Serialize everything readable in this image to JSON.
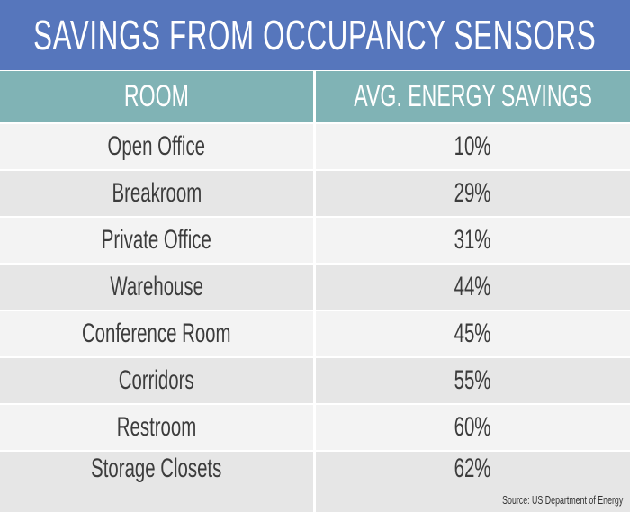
{
  "chart_data": {
    "type": "table",
    "title": "SAVINGS FROM OCCUPANCY SENSORS",
    "columns": [
      "ROOM",
      "AVG. ENERGY SAVINGS"
    ],
    "rows": [
      [
        "Open Office",
        "10%"
      ],
      [
        "Breakroom",
        "29%"
      ],
      [
        "Private Office",
        "31%"
      ],
      [
        "Warehouse",
        "44%"
      ],
      [
        "Conference Room",
        "45%"
      ],
      [
        "Corridors",
        "55%"
      ],
      [
        "Restroom",
        "60%"
      ],
      [
        "Storage Closets",
        "62%"
      ]
    ],
    "source": "Source: US Department of Energy"
  },
  "colors": {
    "title_bg": "#5676BC",
    "header_bg": "#80B3B5",
    "row_light": "#F3F3F3",
    "row_dark": "#E6E6E6",
    "text": "#3C3C3C"
  }
}
